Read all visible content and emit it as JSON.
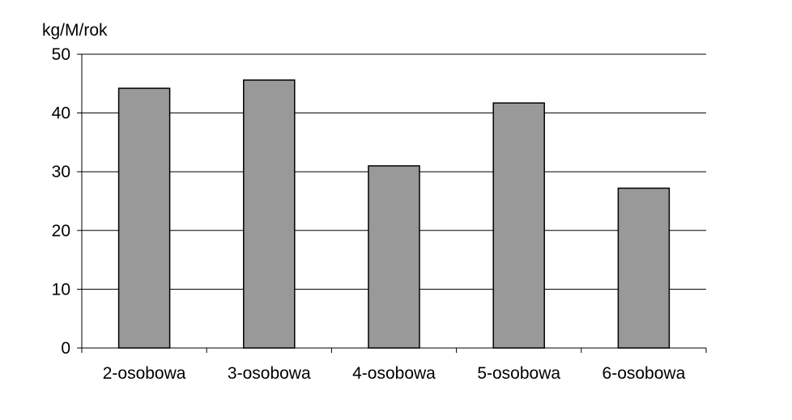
{
  "chart_data": {
    "type": "bar",
    "ylabel": "kg/M/rok",
    "xlabel": "",
    "title": "",
    "categories": [
      "2-osobowa",
      "3-osobowa",
      "4-osobowa",
      "5-osobowa",
      "6-osobowa"
    ],
    "values": [
      44.2,
      45.6,
      31.0,
      41.7,
      27.2
    ],
    "ylim": [
      0,
      50
    ],
    "yticks": [
      0,
      10,
      20,
      30,
      40,
      50
    ],
    "grid": true,
    "legend": "none",
    "colors": {
      "bar_fill": "#999999",
      "bar_stroke": "#000000",
      "grid": "#000000"
    }
  }
}
